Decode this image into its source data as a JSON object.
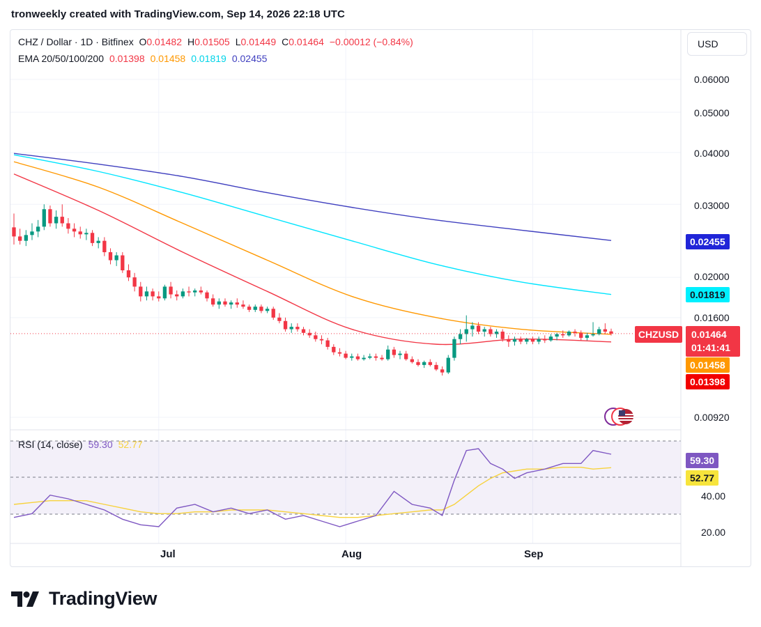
{
  "header": {
    "text": "tronweekly created with TradingView.com, Sep 14, 2026 22:18 UTC"
  },
  "legend": {
    "symbol": "CHZ / Dollar · 1D · Bitfinex",
    "o_label": "O",
    "o": "0.01482",
    "h_label": "H",
    "h": "0.01505",
    "l_label": "L",
    "l": "0.01449",
    "c_label": "C",
    "c": "0.01464",
    "change": "−0.00012 (−0.84%)",
    "ema_label": "EMA 20/50/100/200",
    "ema20": "0.01398",
    "ema50": "0.01458",
    "ema100": "0.01819",
    "ema200": "0.02455",
    "rsi_label": "RSI (14, close)",
    "rsi": "59.30",
    "rsi_ma": "52.77"
  },
  "currency": "USD",
  "price_axis": [
    "0.06000",
    "0.05000",
    "0.04000",
    "0.03000",
    "0.02000",
    "0.01600",
    "0.00920"
  ],
  "rsi_axis": [
    "40.00",
    "20.00"
  ],
  "tags": {
    "symbol": "CHZUSD",
    "current": "0.01464",
    "countdown": "01:41:41",
    "ema200": "0.02455",
    "ema100": "0.01819",
    "ema50": "0.01458",
    "ema20": "0.01398",
    "rsi": "59.30",
    "rsi_ma": "52.77"
  },
  "x_axis": [
    "Jul",
    "Aug",
    "Sep"
  ],
  "footer": {
    "brand": "TradingView"
  },
  "colors": {
    "up": "#089981",
    "down": "#f23645",
    "ema20": "#f23645",
    "ema50": "#ff9800",
    "ema100": "#00e5ff",
    "ema200": "#3f3fbf",
    "rsi": "#7e57c2",
    "rsi_ma": "#f7d23c"
  },
  "chart_data": {
    "type": "candlestick",
    "symbol": "CHZ / Dollar",
    "timeframe": "1D",
    "y_scale": "log",
    "ylim": [
      0.0088,
      0.066
    ],
    "x_range": [
      "2026-06-07",
      "2026-09-14"
    ],
    "candles": [
      {
        "date": "2026-06-07",
        "o": 0.0264,
        "h": 0.0285,
        "l": 0.024,
        "c": 0.0251
      },
      {
        "date": "2026-06-08",
        "o": 0.0251,
        "h": 0.0262,
        "l": 0.024,
        "c": 0.0245
      },
      {
        "date": "2026-06-09",
        "o": 0.0245,
        "h": 0.026,
        "l": 0.0238,
        "c": 0.0253
      },
      {
        "date": "2026-06-10",
        "o": 0.0253,
        "h": 0.027,
        "l": 0.0246,
        "c": 0.0258
      },
      {
        "date": "2026-06-11",
        "o": 0.0258,
        "h": 0.0275,
        "l": 0.025,
        "c": 0.0265
      },
      {
        "date": "2026-06-12",
        "o": 0.0265,
        "h": 0.03,
        "l": 0.026,
        "c": 0.0292
      },
      {
        "date": "2026-06-13",
        "o": 0.0292,
        "h": 0.0298,
        "l": 0.0265,
        "c": 0.027
      },
      {
        "date": "2026-06-14",
        "o": 0.027,
        "h": 0.029,
        "l": 0.0262,
        "c": 0.028
      },
      {
        "date": "2026-06-15",
        "o": 0.028,
        "h": 0.03,
        "l": 0.0265,
        "c": 0.027
      },
      {
        "date": "2026-06-16",
        "o": 0.027,
        "h": 0.0278,
        "l": 0.0255,
        "c": 0.0262
      },
      {
        "date": "2026-06-17",
        "o": 0.0262,
        "h": 0.027,
        "l": 0.025,
        "c": 0.0258
      },
      {
        "date": "2026-06-18",
        "o": 0.0258,
        "h": 0.0265,
        "l": 0.0248,
        "c": 0.0254
      },
      {
        "date": "2026-06-19",
        "o": 0.0254,
        "h": 0.0262,
        "l": 0.0246,
        "c": 0.0256
      },
      {
        "date": "2026-06-20",
        "o": 0.0256,
        "h": 0.026,
        "l": 0.0238,
        "c": 0.0242
      },
      {
        "date": "2026-06-21",
        "o": 0.0242,
        "h": 0.025,
        "l": 0.0235,
        "c": 0.0245
      },
      {
        "date": "2026-06-22",
        "o": 0.0245,
        "h": 0.025,
        "l": 0.0225,
        "c": 0.023
      },
      {
        "date": "2026-06-23",
        "o": 0.023,
        "h": 0.0235,
        "l": 0.0215,
        "c": 0.022
      },
      {
        "date": "2026-06-24",
        "o": 0.022,
        "h": 0.023,
        "l": 0.0213,
        "c": 0.0226
      },
      {
        "date": "2026-06-25",
        "o": 0.0226,
        "h": 0.023,
        "l": 0.0205,
        "c": 0.0208
      },
      {
        "date": "2026-06-26",
        "o": 0.0208,
        "h": 0.0215,
        "l": 0.0196,
        "c": 0.02
      },
      {
        "date": "2026-06-27",
        "o": 0.02,
        "h": 0.0205,
        "l": 0.0185,
        "c": 0.019
      },
      {
        "date": "2026-06-28",
        "o": 0.019,
        "h": 0.0195,
        "l": 0.0175,
        "c": 0.018
      },
      {
        "date": "2026-06-29",
        "o": 0.018,
        "h": 0.019,
        "l": 0.0176,
        "c": 0.0185
      },
      {
        "date": "2026-06-30",
        "o": 0.0185,
        "h": 0.0188,
        "l": 0.0176,
        "c": 0.018
      },
      {
        "date": "2026-07-01",
        "o": 0.018,
        "h": 0.0185,
        "l": 0.0175,
        "c": 0.0178
      },
      {
        "date": "2026-07-02",
        "o": 0.0178,
        "h": 0.0192,
        "l": 0.0176,
        "c": 0.019
      },
      {
        "date": "2026-07-03",
        "o": 0.019,
        "h": 0.0195,
        "l": 0.0178,
        "c": 0.0182
      },
      {
        "date": "2026-07-04",
        "o": 0.0182,
        "h": 0.0186,
        "l": 0.0176,
        "c": 0.018
      },
      {
        "date": "2026-07-05",
        "o": 0.018,
        "h": 0.0188,
        "l": 0.0178,
        "c": 0.0185
      },
      {
        "date": "2026-07-06",
        "o": 0.0185,
        "h": 0.019,
        "l": 0.018,
        "c": 0.0184
      },
      {
        "date": "2026-07-07",
        "o": 0.0184,
        "h": 0.0188,
        "l": 0.018,
        "c": 0.0186
      },
      {
        "date": "2026-07-08",
        "o": 0.0186,
        "h": 0.019,
        "l": 0.0182,
        "c": 0.0184
      },
      {
        "date": "2026-07-09",
        "o": 0.0184,
        "h": 0.0186,
        "l": 0.0175,
        "c": 0.0178
      },
      {
        "date": "2026-07-10",
        "o": 0.0178,
        "h": 0.0182,
        "l": 0.017,
        "c": 0.0172
      },
      {
        "date": "2026-07-11",
        "o": 0.0172,
        "h": 0.0178,
        "l": 0.0168,
        "c": 0.0175
      },
      {
        "date": "2026-07-12",
        "o": 0.0175,
        "h": 0.0178,
        "l": 0.017,
        "c": 0.0172
      },
      {
        "date": "2026-07-13",
        "o": 0.0172,
        "h": 0.0176,
        "l": 0.0168,
        "c": 0.0174
      },
      {
        "date": "2026-07-14",
        "o": 0.0174,
        "h": 0.0178,
        "l": 0.0169,
        "c": 0.0172
      },
      {
        "date": "2026-07-15",
        "o": 0.0172,
        "h": 0.0176,
        "l": 0.0168,
        "c": 0.017
      },
      {
        "date": "2026-07-16",
        "o": 0.017,
        "h": 0.0172,
        "l": 0.0165,
        "c": 0.0167
      },
      {
        "date": "2026-07-17",
        "o": 0.0167,
        "h": 0.0172,
        "l": 0.0165,
        "c": 0.017
      },
      {
        "date": "2026-07-18",
        "o": 0.017,
        "h": 0.0172,
        "l": 0.0164,
        "c": 0.0166
      },
      {
        "date": "2026-07-19",
        "o": 0.0166,
        "h": 0.017,
        "l": 0.0164,
        "c": 0.0168
      },
      {
        "date": "2026-07-20",
        "o": 0.0168,
        "h": 0.017,
        "l": 0.0158,
        "c": 0.016
      },
      {
        "date": "2026-07-21",
        "o": 0.016,
        "h": 0.0164,
        "l": 0.0155,
        "c": 0.0157
      },
      {
        "date": "2026-07-22",
        "o": 0.0157,
        "h": 0.016,
        "l": 0.0148,
        "c": 0.015
      },
      {
        "date": "2026-07-23",
        "o": 0.015,
        "h": 0.0155,
        "l": 0.0147,
        "c": 0.0152
      },
      {
        "date": "2026-07-24",
        "o": 0.0152,
        "h": 0.0155,
        "l": 0.0148,
        "c": 0.015
      },
      {
        "date": "2026-07-25",
        "o": 0.015,
        "h": 0.0152,
        "l": 0.0145,
        "c": 0.0147
      },
      {
        "date": "2026-07-26",
        "o": 0.0147,
        "h": 0.015,
        "l": 0.0143,
        "c": 0.0145
      },
      {
        "date": "2026-07-27",
        "o": 0.0145,
        "h": 0.0148,
        "l": 0.014,
        "c": 0.0142
      },
      {
        "date": "2026-07-28",
        "o": 0.0142,
        "h": 0.0145,
        "l": 0.0138,
        "c": 0.0141
      },
      {
        "date": "2026-07-29",
        "o": 0.0141,
        "h": 0.0143,
        "l": 0.0134,
        "c": 0.0136
      },
      {
        "date": "2026-07-30",
        "o": 0.0136,
        "h": 0.0138,
        "l": 0.013,
        "c": 0.0132
      },
      {
        "date": "2026-07-31",
        "o": 0.0132,
        "h": 0.0135,
        "l": 0.0129,
        "c": 0.0131
      },
      {
        "date": "2026-08-01",
        "o": 0.0131,
        "h": 0.0133,
        "l": 0.0127,
        "c": 0.0128
      },
      {
        "date": "2026-08-02",
        "o": 0.0128,
        "h": 0.0131,
        "l": 0.0126,
        "c": 0.0129
      },
      {
        "date": "2026-08-03",
        "o": 0.0129,
        "h": 0.0131,
        "l": 0.0126,
        "c": 0.0127
      },
      {
        "date": "2026-08-04",
        "o": 0.0127,
        "h": 0.013,
        "l": 0.0126,
        "c": 0.0128
      },
      {
        "date": "2026-08-05",
        "o": 0.0128,
        "h": 0.0131,
        "l": 0.0127,
        "c": 0.0129
      },
      {
        "date": "2026-08-06",
        "o": 0.0129,
        "h": 0.0131,
        "l": 0.0126,
        "c": 0.0128
      },
      {
        "date": "2026-08-07",
        "o": 0.0128,
        "h": 0.013,
        "l": 0.0126,
        "c": 0.0127
      },
      {
        "date": "2026-08-08",
        "o": 0.0127,
        "h": 0.0137,
        "l": 0.0126,
        "c": 0.0134
      },
      {
        "date": "2026-08-09",
        "o": 0.0134,
        "h": 0.0136,
        "l": 0.0128,
        "c": 0.013
      },
      {
        "date": "2026-08-10",
        "o": 0.013,
        "h": 0.0133,
        "l": 0.0127,
        "c": 0.0131
      },
      {
        "date": "2026-08-11",
        "o": 0.0131,
        "h": 0.0133,
        "l": 0.0126,
        "c": 0.0127
      },
      {
        "date": "2026-08-12",
        "o": 0.0127,
        "h": 0.0129,
        "l": 0.0124,
        "c": 0.0125
      },
      {
        "date": "2026-08-13",
        "o": 0.0125,
        "h": 0.0127,
        "l": 0.0122,
        "c": 0.0123
      },
      {
        "date": "2026-08-14",
        "o": 0.0123,
        "h": 0.0126,
        "l": 0.0121,
        "c": 0.0125
      },
      {
        "date": "2026-08-15",
        "o": 0.0125,
        "h": 0.0127,
        "l": 0.0122,
        "c": 0.0123
      },
      {
        "date": "2026-08-16",
        "o": 0.0123,
        "h": 0.0125,
        "l": 0.0119,
        "c": 0.012
      },
      {
        "date": "2026-08-17",
        "o": 0.012,
        "h": 0.0122,
        "l": 0.0116,
        "c": 0.0118
      },
      {
        "date": "2026-08-18",
        "o": 0.0118,
        "h": 0.013,
        "l": 0.0117,
        "c": 0.0128
      },
      {
        "date": "2026-08-19",
        "o": 0.0128,
        "h": 0.0144,
        "l": 0.0126,
        "c": 0.0142
      },
      {
        "date": "2026-08-20",
        "o": 0.0142,
        "h": 0.015,
        "l": 0.0138,
        "c": 0.0146
      },
      {
        "date": "2026-08-21",
        "o": 0.0146,
        "h": 0.0162,
        "l": 0.014,
        "c": 0.015
      },
      {
        "date": "2026-08-22",
        "o": 0.015,
        "h": 0.0156,
        "l": 0.0144,
        "c": 0.0153
      },
      {
        "date": "2026-08-23",
        "o": 0.0153,
        "h": 0.0156,
        "l": 0.0146,
        "c": 0.0148
      },
      {
        "date": "2026-08-24",
        "o": 0.0148,
        "h": 0.0152,
        "l": 0.0144,
        "c": 0.015
      },
      {
        "date": "2026-08-25",
        "o": 0.015,
        "h": 0.0152,
        "l": 0.0144,
        "c": 0.0146
      },
      {
        "date": "2026-08-26",
        "o": 0.0146,
        "h": 0.015,
        "l": 0.0143,
        "c": 0.0148
      },
      {
        "date": "2026-08-27",
        "o": 0.0148,
        "h": 0.015,
        "l": 0.014,
        "c": 0.0142
      },
      {
        "date": "2026-08-28",
        "o": 0.0142,
        "h": 0.0145,
        "l": 0.0136,
        "c": 0.014
      },
      {
        "date": "2026-08-29",
        "o": 0.014,
        "h": 0.0144,
        "l": 0.0137,
        "c": 0.0142
      },
      {
        "date": "2026-08-30",
        "o": 0.0142,
        "h": 0.0144,
        "l": 0.0138,
        "c": 0.014
      },
      {
        "date": "2026-08-31",
        "o": 0.014,
        "h": 0.0143,
        "l": 0.0138,
        "c": 0.0142
      },
      {
        "date": "2026-09-01",
        "o": 0.0142,
        "h": 0.0144,
        "l": 0.0138,
        "c": 0.014
      },
      {
        "date": "2026-09-02",
        "o": 0.014,
        "h": 0.0144,
        "l": 0.0138,
        "c": 0.0142
      },
      {
        "date": "2026-09-03",
        "o": 0.0142,
        "h": 0.0145,
        "l": 0.0139,
        "c": 0.0141
      },
      {
        "date": "2026-09-04",
        "o": 0.0141,
        "h": 0.0146,
        "l": 0.014,
        "c": 0.0144
      },
      {
        "date": "2026-09-05",
        "o": 0.0144,
        "h": 0.0147,
        "l": 0.0141,
        "c": 0.0146
      },
      {
        "date": "2026-09-06",
        "o": 0.0146,
        "h": 0.0149,
        "l": 0.0143,
        "c": 0.0145
      },
      {
        "date": "2026-09-07",
        "o": 0.0145,
        "h": 0.0149,
        "l": 0.0144,
        "c": 0.0148
      },
      {
        "date": "2026-09-08",
        "o": 0.0148,
        "h": 0.015,
        "l": 0.0144,
        "c": 0.0147
      },
      {
        "date": "2026-09-09",
        "o": 0.0147,
        "h": 0.0149,
        "l": 0.0141,
        "c": 0.0143
      },
      {
        "date": "2026-09-10",
        "o": 0.0143,
        "h": 0.0147,
        "l": 0.0141,
        "c": 0.0145
      },
      {
        "date": "2026-09-11",
        "o": 0.0145,
        "h": 0.0156,
        "l": 0.0144,
        "c": 0.0146
      },
      {
        "date": "2026-09-12",
        "o": 0.0146,
        "h": 0.0152,
        "l": 0.0145,
        "c": 0.015
      },
      {
        "date": "2026-09-13",
        "o": 0.015,
        "h": 0.0155,
        "l": 0.0146,
        "c": 0.0148
      },
      {
        "date": "2026-09-14",
        "o": 0.01482,
        "h": 0.01505,
        "l": 0.01449,
        "c": 0.01464
      }
    ],
    "ema": {
      "dates": [
        "2026-06-07",
        "2026-06-21",
        "2026-07-05",
        "2026-07-19",
        "2026-08-02",
        "2026-08-16",
        "2026-08-30",
        "2026-09-14"
      ],
      "ema20": [
        0.0355,
        0.029,
        0.023,
        0.0185,
        0.015,
        0.0138,
        0.0142,
        0.01398
      ],
      "ema50": [
        0.038,
        0.033,
        0.027,
        0.022,
        0.018,
        0.016,
        0.015,
        0.01458
      ],
      "ema100": [
        0.0395,
        0.036,
        0.032,
        0.028,
        0.0245,
        0.0215,
        0.0195,
        0.01819
      ],
      "ema200": [
        0.0398,
        0.0375,
        0.035,
        0.032,
        0.0295,
        0.0275,
        0.026,
        0.02455
      ]
    },
    "rsi": {
      "dates": [
        "2026-06-07",
        "2026-06-10",
        "2026-06-13",
        "2026-06-16",
        "2026-06-19",
        "2026-06-22",
        "2026-06-25",
        "2026-06-28",
        "2026-07-01",
        "2026-07-04",
        "2026-07-07",
        "2026-07-10",
        "2026-07-13",
        "2026-07-16",
        "2026-07-19",
        "2026-07-22",
        "2026-07-25",
        "2026-07-28",
        "2026-07-31",
        "2026-08-03",
        "2026-08-06",
        "2026-08-09",
        "2026-08-12",
        "2026-08-15",
        "2026-08-17",
        "2026-08-19",
        "2026-08-21",
        "2026-08-23",
        "2026-08-25",
        "2026-08-27",
        "2026-08-29",
        "2026-08-31",
        "2026-09-03",
        "2026-09-06",
        "2026-09-09",
        "2026-09-11",
        "2026-09-14"
      ],
      "values": [
        26,
        28,
        38,
        36,
        33,
        30,
        25,
        22,
        21,
        31,
        33,
        29,
        31,
        28,
        30,
        25,
        27,
        24,
        21,
        24,
        27,
        40,
        33,
        31,
        27,
        46,
        62,
        63,
        55,
        52,
        47,
        50,
        52,
        55,
        55,
        62,
        60
      ],
      "ma": [
        33,
        34,
        35,
        35,
        35,
        33,
        31,
        29,
        28,
        28,
        29,
        29,
        30,
        30,
        30,
        29,
        28,
        27,
        26,
        26,
        27,
        28,
        29,
        30,
        30,
        33,
        38,
        43,
        47,
        50,
        51,
        52,
        52,
        53,
        53,
        52,
        52.77
      ],
      "ylim": [
        12,
        72
      ],
      "levels": [
        70,
        30
      ]
    }
  }
}
